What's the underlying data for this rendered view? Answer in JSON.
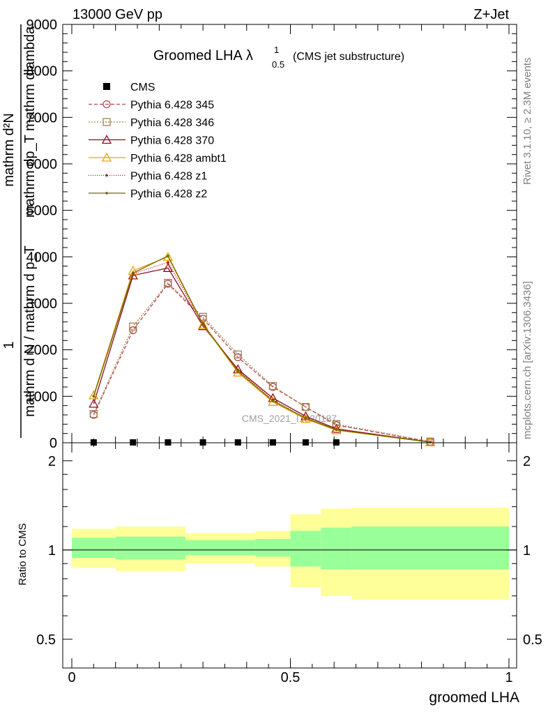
{
  "header": {
    "energy": "13000 GeV pp",
    "process": "Z+Jet"
  },
  "side_labels": {
    "rivet": "Rivet 3.1.10, ≥ 2.3M events",
    "mcplots": "mcplots.cern.ch [arXiv:1306.3436]"
  },
  "chart_data": [
    {
      "type": "line",
      "title": "Groomed LHA",
      "title_symbol": "λ",
      "title_superscript": "1",
      "title_subscript": "0.5",
      "subtitle": "(CMS jet substructure)",
      "watermark": "CMS_2021_I1920187",
      "ylabel_numerator": "1",
      "ylabel_numerator_text": "mathrm d²N",
      "ylabel_numerator_sub": "mathrm dp_T mathrm dlambda",
      "ylabel_denominator": "mathrm d N / mathrm d p_T",
      "ylim": [
        0,
        9000
      ],
      "xlim": [
        0,
        1
      ],
      "yticks": [
        {
          "value": 0,
          "label": "0"
        },
        {
          "value": 1000,
          "label": "1000"
        },
        {
          "value": 2000,
          "label": "2000"
        },
        {
          "value": 3000,
          "label": "3000"
        },
        {
          "value": 4000,
          "label": "4000"
        },
        {
          "value": 5000,
          "label": "5000"
        },
        {
          "value": 6000,
          "label": "6000"
        },
        {
          "value": 7000,
          "label": "7000"
        },
        {
          "value": 8000,
          "label": "8000"
        },
        {
          "value": 9000,
          "label": "9000"
        }
      ],
      "legend_position": "top-left",
      "cms": {
        "name": "CMS",
        "color": "#000000",
        "x": [
          0.05,
          0.14,
          0.22,
          0.3,
          0.38,
          0.46,
          0.535,
          0.605
        ],
        "y": [
          0,
          0,
          0,
          0,
          0,
          0,
          0,
          0
        ]
      },
      "x": [
        0.05,
        0.14,
        0.22,
        0.3,
        0.38,
        0.46,
        0.535,
        0.605,
        0.82
      ],
      "series": [
        {
          "name": "Pythia 6.428 345",
          "color": "#b5484f",
          "dash": "5,3",
          "marker": "circle",
          "values": [
            600,
            2420,
            3420,
            2670,
            1840,
            1200,
            770,
            380,
            20
          ]
        },
        {
          "name": "Pythia 6.428 346",
          "color": "#a57f4a",
          "dash": "2,2",
          "marker": "square",
          "values": [
            620,
            2500,
            3440,
            2710,
            1900,
            1220,
            770,
            400,
            25
          ]
        },
        {
          "name": "Pythia 6.428 370",
          "color": "#8b0f20",
          "dash": "",
          "marker": "triangle",
          "values": [
            840,
            3600,
            3760,
            2510,
            1580,
            960,
            570,
            300,
            15
          ]
        },
        {
          "name": "Pythia 6.428 ambt1",
          "color": "#f0a000",
          "dash": "",
          "marker": "triangle",
          "values": [
            1020,
            3700,
            4000,
            2540,
            1510,
            880,
            510,
            270,
            12
          ]
        },
        {
          "name": "Pythia 6.428 z1",
          "color": "#c00000",
          "dash": "1,2",
          "marker": "dot",
          "values": [
            1000,
            3640,
            3880,
            2560,
            1560,
            920,
            530,
            290,
            14
          ]
        },
        {
          "name": "Pythia 6.428 z2",
          "color": "#6b6b00",
          "dash": "",
          "marker": "dot",
          "values": [
            1000,
            3650,
            4020,
            2550,
            1540,
            900,
            530,
            280,
            13
          ]
        }
      ]
    },
    {
      "type": "area",
      "ylabel": "Ratio to CMS",
      "xlabel": "groomed LHA",
      "ylim": [
        0.4,
        2.3
      ],
      "xlim": [
        0,
        1
      ],
      "xticks": [
        {
          "value": 0,
          "label": "0"
        },
        {
          "value": 0.5,
          "label": "0.5"
        },
        {
          "value": 1,
          "label": "1"
        }
      ],
      "yticks": [
        {
          "value": 0.5,
          "label": "0.5"
        },
        {
          "value": 1,
          "label": "1"
        },
        {
          "value": 2,
          "label": "2"
        }
      ],
      "band_colors": {
        "outer": "#ffff99",
        "inner": "#99ff99"
      },
      "bins": [
        {
          "lo": 0.0,
          "hi": 0.1,
          "outer": [
            0.87,
            1.18
          ],
          "inner": [
            0.94,
            1.1
          ]
        },
        {
          "lo": 0.1,
          "hi": 0.26,
          "outer": [
            0.85,
            1.2
          ],
          "inner": [
            0.93,
            1.11
          ]
        },
        {
          "lo": 0.26,
          "hi": 0.42,
          "outer": [
            0.9,
            1.14
          ],
          "inner": [
            0.96,
            1.08
          ]
        },
        {
          "lo": 0.42,
          "hi": 0.5,
          "outer": [
            0.88,
            1.16
          ],
          "inner": [
            0.95,
            1.09
          ]
        },
        {
          "lo": 0.5,
          "hi": 0.57,
          "outer": [
            0.75,
            1.32
          ],
          "inner": [
            0.88,
            1.16
          ]
        },
        {
          "lo": 0.57,
          "hi": 0.64,
          "outer": [
            0.7,
            1.38
          ],
          "inner": [
            0.86,
            1.19
          ]
        },
        {
          "lo": 0.64,
          "hi": 1.0,
          "outer": [
            0.68,
            1.39
          ],
          "inner": [
            0.86,
            1.2
          ]
        }
      ],
      "reference_line": 1
    }
  ]
}
